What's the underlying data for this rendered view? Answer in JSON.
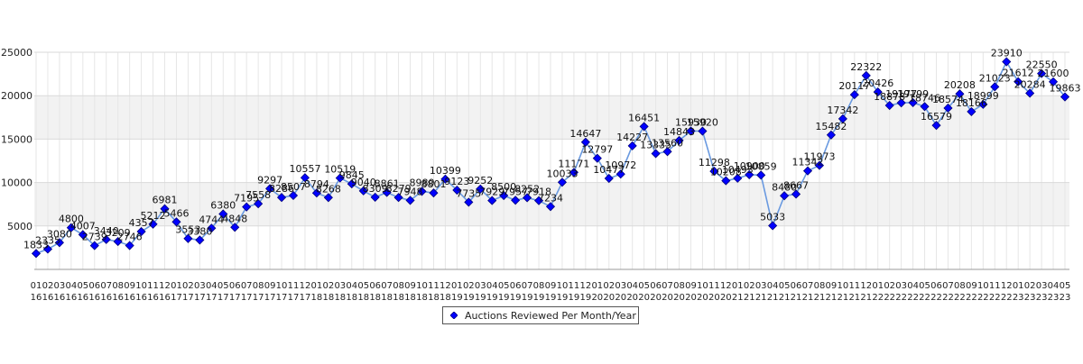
{
  "chart_data": {
    "type": "line",
    "title": "",
    "xlabel": "",
    "ylabel": "",
    "ylim": [
      0,
      25000
    ],
    "yticks": [
      5000,
      10000,
      15000,
      20000,
      25000
    ],
    "grid": true,
    "legend_position": "bottom-center",
    "series": [
      {
        "name": "Auctions Reviewed Per Month/Year",
        "color": "#0000ff",
        "line_color": "#6a9ae0",
        "values": [
          1833,
          2335,
          3080,
          4800,
          4007,
          2739,
          3440,
          3209,
          2746,
          4357,
          5212,
          6981,
          5466,
          3553,
          3380,
          4744,
          6380,
          4848,
          7195,
          7558,
          9297,
          8286,
          8507,
          10557,
          8794,
          8268,
          10519,
          9845,
          9040,
          8309,
          8861,
          8279,
          7948,
          8980,
          8801,
          10399,
          9123,
          7735,
          9252,
          7929,
          8500,
          7957,
          8252,
          7918,
          7234,
          10033,
          11171,
          14647,
          12797,
          10477,
          10972,
          14227,
          16451,
          13335,
          13560,
          14843,
          15930,
          15920,
          11298,
          10208,
          10493,
          10900,
          10859,
          5033,
          8480,
          8667,
          11342,
          11973,
          15482,
          17342,
          20117,
          22322,
          20426,
          18878,
          19177,
          19199,
          18746,
          16579,
          18574,
          20208,
          18166,
          18999,
          21023,
          23910,
          21612,
          20284,
          22550,
          21600,
          19863
        ]
      }
    ],
    "categories": [
      [
        "01",
        "2016"
      ],
      [
        "02",
        "2016"
      ],
      [
        "03",
        "2016"
      ],
      [
        "04",
        "2016"
      ],
      [
        "05",
        "2016"
      ],
      [
        "06",
        "2016"
      ],
      [
        "07",
        "2016"
      ],
      [
        "08",
        "2016"
      ],
      [
        "09",
        "2016"
      ],
      [
        "10",
        "2016"
      ],
      [
        "11",
        "2016"
      ],
      [
        "12",
        "2016"
      ],
      [
        "01",
        "2017"
      ],
      [
        "02",
        "2017"
      ],
      [
        "03",
        "2017"
      ],
      [
        "04",
        "2017"
      ],
      [
        "05",
        "2017"
      ],
      [
        "06",
        "2017"
      ],
      [
        "07",
        "2017"
      ],
      [
        "08",
        "2017"
      ],
      [
        "09",
        "2017"
      ],
      [
        "10",
        "2017"
      ],
      [
        "11",
        "2017"
      ],
      [
        "12",
        "2017"
      ],
      [
        "01",
        "2018"
      ],
      [
        "02",
        "2018"
      ],
      [
        "03",
        "2018"
      ],
      [
        "04",
        "2018"
      ],
      [
        "05",
        "2018"
      ],
      [
        "06",
        "2018"
      ],
      [
        "07",
        "2018"
      ],
      [
        "08",
        "2018"
      ],
      [
        "09",
        "2018"
      ],
      [
        "10",
        "2018"
      ],
      [
        "11",
        "2018"
      ],
      [
        "12",
        "2018"
      ],
      [
        "01",
        "2019"
      ],
      [
        "02",
        "2019"
      ],
      [
        "03",
        "2019"
      ],
      [
        "04",
        "2019"
      ],
      [
        "05",
        "2019"
      ],
      [
        "06",
        "2019"
      ],
      [
        "07",
        "2019"
      ],
      [
        "08",
        "2019"
      ],
      [
        "09",
        "2019"
      ],
      [
        "10",
        "2019"
      ],
      [
        "11",
        "2019"
      ],
      [
        "12",
        "2019"
      ],
      [
        "01",
        "2020"
      ],
      [
        "02",
        "2020"
      ],
      [
        "03",
        "2020"
      ],
      [
        "04",
        "2020"
      ],
      [
        "05",
        "2020"
      ],
      [
        "06",
        "2020"
      ],
      [
        "07",
        "2020"
      ],
      [
        "08",
        "2020"
      ],
      [
        "09",
        "2020"
      ],
      [
        "10",
        "2020"
      ],
      [
        "11",
        "2020"
      ],
      [
        "12",
        "2020"
      ],
      [
        "01",
        "2021"
      ],
      [
        "02",
        "2021"
      ],
      [
        "03",
        "2021"
      ],
      [
        "04",
        "2021"
      ],
      [
        "05",
        "2021"
      ],
      [
        "06",
        "2021"
      ],
      [
        "07",
        "2021"
      ],
      [
        "08",
        "2021"
      ],
      [
        "09",
        "2021"
      ],
      [
        "10",
        "2021"
      ],
      [
        "11",
        "2021"
      ],
      [
        "12",
        "2021"
      ],
      [
        "01",
        "2022"
      ],
      [
        "02",
        "2022"
      ],
      [
        "03",
        "2022"
      ],
      [
        "04",
        "2022"
      ],
      [
        "05",
        "2022"
      ],
      [
        "06",
        "2022"
      ],
      [
        "07",
        "2022"
      ],
      [
        "08",
        "2022"
      ],
      [
        "09",
        "2022"
      ],
      [
        "10",
        "2022"
      ],
      [
        "11",
        "2022"
      ],
      [
        "12",
        "2022"
      ],
      [
        "01",
        "2023"
      ],
      [
        "02",
        "2023"
      ],
      [
        "03",
        "2023"
      ],
      [
        "04",
        "2023"
      ],
      [
        "05",
        "2023"
      ]
    ]
  },
  "legend": {
    "label": "Auctions Reviewed Per Month/Year"
  }
}
